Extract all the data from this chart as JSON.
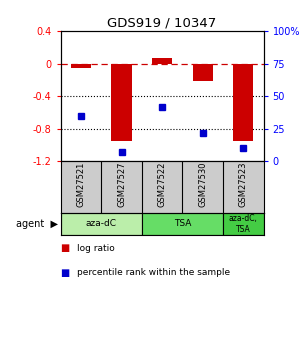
{
  "title": "GDS919 / 10347",
  "samples": [
    "GSM27521",
    "GSM27527",
    "GSM27522",
    "GSM27530",
    "GSM27523"
  ],
  "log_ratio": [
    -0.05,
    -0.95,
    0.07,
    -0.22,
    -0.95
  ],
  "percentile_rank": [
    35,
    7,
    42,
    22,
    10
  ],
  "ylim_left": [
    -1.2,
    0.4
  ],
  "ylim_right": [
    0,
    100
  ],
  "bar_color": "#cc0000",
  "dot_color": "#0000cc",
  "agent_groups": [
    {
      "label": "aza-dC",
      "span": [
        0,
        2
      ],
      "color": "#bbeeaa"
    },
    {
      "label": "TSA",
      "span": [
        2,
        4
      ],
      "color": "#66dd66"
    },
    {
      "label": "aza-dC,\nTSA",
      "span": [
        4,
        5
      ],
      "color": "#44cc44"
    }
  ],
  "legend_bar_label": "log ratio",
  "legend_dot_label": "percentile rank within the sample",
  "right_tick_labels": [
    "100%",
    "75",
    "50",
    "25",
    "0"
  ],
  "right_tick_vals": [
    100,
    75,
    50,
    25,
    0
  ],
  "left_tick_labels": [
    "0.4",
    "0",
    "-0.4",
    "-0.8",
    "-1.2"
  ],
  "left_tick_vals": [
    0.4,
    0.0,
    -0.4,
    -0.8,
    -1.2
  ],
  "bar_width": 0.5,
  "sample_panel_color": "#cccccc",
  "fig_bg": "#ffffff"
}
